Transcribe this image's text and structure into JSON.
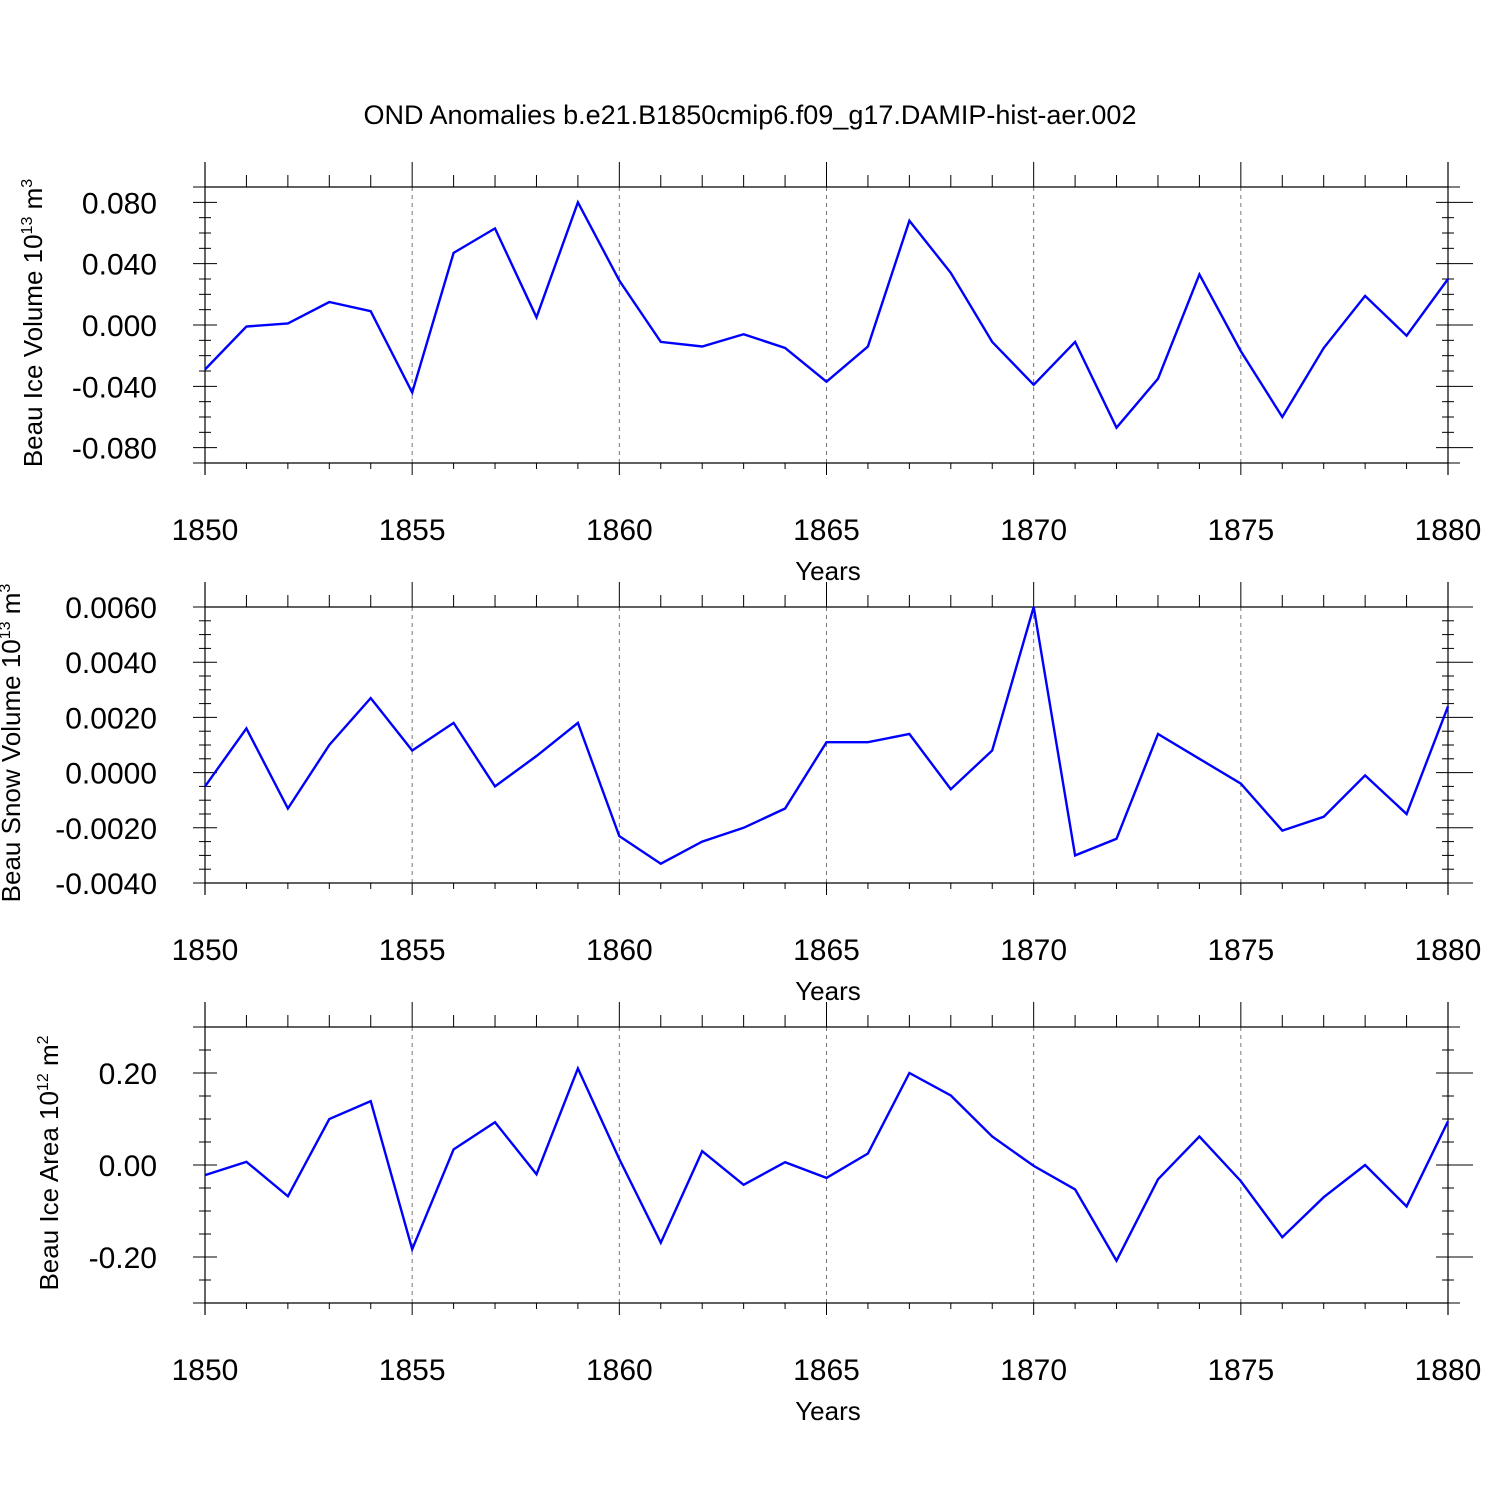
{
  "figure": {
    "title": "OND Anomalies b.e21.B1850cmip6.f09_g17.DAMIP-hist-aer.002",
    "line_color": "#0000ff",
    "grid_color": "#777777",
    "axis_color": "#000000"
  },
  "chart_data": [
    {
      "type": "line",
      "title": "OND Anomalies b.e21.B1850cmip6.f09_g17.DAMIP-hist-aer.002",
      "xlabel": "Years",
      "ylabel": "Beau Ice Volume 10",
      "ylabel_exp": "13",
      "ylabel_unit": "m",
      "ylabel_unit_exp": "3",
      "xlim": [
        1850,
        1880
      ],
      "ylim": [
        -0.09,
        0.09
      ],
      "grid": "vertical dashed at 5-year ticks",
      "xticks": [
        "1850",
        "1855",
        "1860",
        "1865",
        "1870",
        "1875",
        "1880"
      ],
      "yticks": [
        {
          "value": 0.08,
          "label": "0.080"
        },
        {
          "value": 0.04,
          "label": "0.040"
        },
        {
          "value": 0.0,
          "label": "0.000"
        },
        {
          "value": -0.04,
          "label": "-0.040"
        },
        {
          "value": -0.08,
          "label": "-0.080"
        }
      ],
      "y_minor_step": 0.01,
      "x": [
        1850,
        1851,
        1852,
        1853,
        1854,
        1855,
        1856,
        1857,
        1858,
        1859,
        1860,
        1861,
        1862,
        1863,
        1864,
        1865,
        1866,
        1867,
        1868,
        1869,
        1870,
        1871,
        1872,
        1873,
        1874,
        1875,
        1876,
        1877,
        1878,
        1879,
        1880
      ],
      "series": [
        {
          "name": "Beau Ice Volume",
          "values": [
            -0.029,
            -0.001,
            0.001,
            0.015,
            0.009,
            -0.044,
            0.047,
            0.063,
            0.005,
            0.08,
            0.029,
            -0.011,
            -0.014,
            -0.006,
            -0.015,
            -0.037,
            -0.014,
            0.068,
            0.034,
            -0.011,
            -0.039,
            -0.011,
            -0.067,
            -0.035,
            0.033,
            -0.017,
            -0.06,
            -0.015,
            0.019,
            -0.007,
            0.03
          ]
        }
      ]
    },
    {
      "type": "line",
      "xlabel": "Years",
      "ylabel": "Beau Snow Volume 10",
      "ylabel_exp": "13",
      "ylabel_unit": "m",
      "ylabel_unit_exp": "3",
      "xlim": [
        1850,
        1880
      ],
      "ylim": [
        -0.004,
        0.006
      ],
      "grid": "vertical dashed at 5-year ticks",
      "xticks": [
        "1850",
        "1855",
        "1860",
        "1865",
        "1870",
        "1875",
        "1880"
      ],
      "yticks": [
        {
          "value": 0.006,
          "label": "0.0060"
        },
        {
          "value": 0.004,
          "label": "0.0040"
        },
        {
          "value": 0.002,
          "label": "0.0020"
        },
        {
          "value": 0.0,
          "label": "0.0000"
        },
        {
          "value": -0.002,
          "label": "-0.0020"
        },
        {
          "value": -0.004,
          "label": "-0.0040"
        }
      ],
      "y_minor_step": 0.0005,
      "x": [
        1850,
        1851,
        1852,
        1853,
        1854,
        1855,
        1856,
        1857,
        1858,
        1859,
        1860,
        1861,
        1862,
        1863,
        1864,
        1865,
        1866,
        1867,
        1868,
        1869,
        1870,
        1871,
        1872,
        1873,
        1874,
        1875,
        1876,
        1877,
        1878,
        1879,
        1880
      ],
      "series": [
        {
          "name": "Beau Snow Volume",
          "values": [
            -0.0005,
            0.0016,
            -0.0013,
            0.001,
            0.0027,
            0.0008,
            0.0018,
            -0.0005,
            0.0006,
            0.0018,
            -0.0023,
            -0.0033,
            -0.0025,
            -0.002,
            -0.0013,
            0.0011,
            0.0011,
            0.0014,
            -0.0006,
            0.0008,
            0.006,
            -0.003,
            -0.0024,
            0.0014,
            0.0005,
            -0.0004,
            -0.0021,
            -0.0016,
            -0.0001,
            -0.0015,
            0.0024
          ]
        }
      ]
    },
    {
      "type": "line",
      "xlabel": "Years",
      "ylabel": "Beau Ice Area 10",
      "ylabel_exp": "12",
      "ylabel_unit": "m",
      "ylabel_unit_exp": "2",
      "xlim": [
        1850,
        1880
      ],
      "ylim": [
        -0.3,
        0.3
      ],
      "grid": "vertical dashed at 5-year ticks",
      "xticks": [
        "1850",
        "1855",
        "1860",
        "1865",
        "1870",
        "1875",
        "1880"
      ],
      "yticks": [
        {
          "value": 0.2,
          "label": "0.20"
        },
        {
          "value": 0.0,
          "label": "0.00"
        },
        {
          "value": -0.2,
          "label": "-0.20"
        }
      ],
      "y_minor_step": 0.05,
      "x": [
        1850,
        1851,
        1852,
        1853,
        1854,
        1855,
        1856,
        1857,
        1858,
        1859,
        1860,
        1861,
        1862,
        1863,
        1864,
        1865,
        1866,
        1867,
        1868,
        1869,
        1870,
        1871,
        1872,
        1873,
        1874,
        1875,
        1876,
        1877,
        1878,
        1879,
        1880
      ],
      "series": [
        {
          "name": "Beau Ice Area",
          "values": [
            -0.022,
            0.007,
            -0.068,
            0.1,
            0.139,
            -0.183,
            0.034,
            0.093,
            -0.02,
            0.21,
            0.013,
            -0.169,
            0.03,
            -0.043,
            0.006,
            -0.028,
            0.025,
            0.2,
            0.151,
            0.062,
            -0.002,
            -0.053,
            -0.208,
            -0.031,
            0.062,
            -0.035,
            -0.157,
            -0.07,
            0.0,
            -0.09,
            0.095
          ]
        }
      ]
    }
  ]
}
